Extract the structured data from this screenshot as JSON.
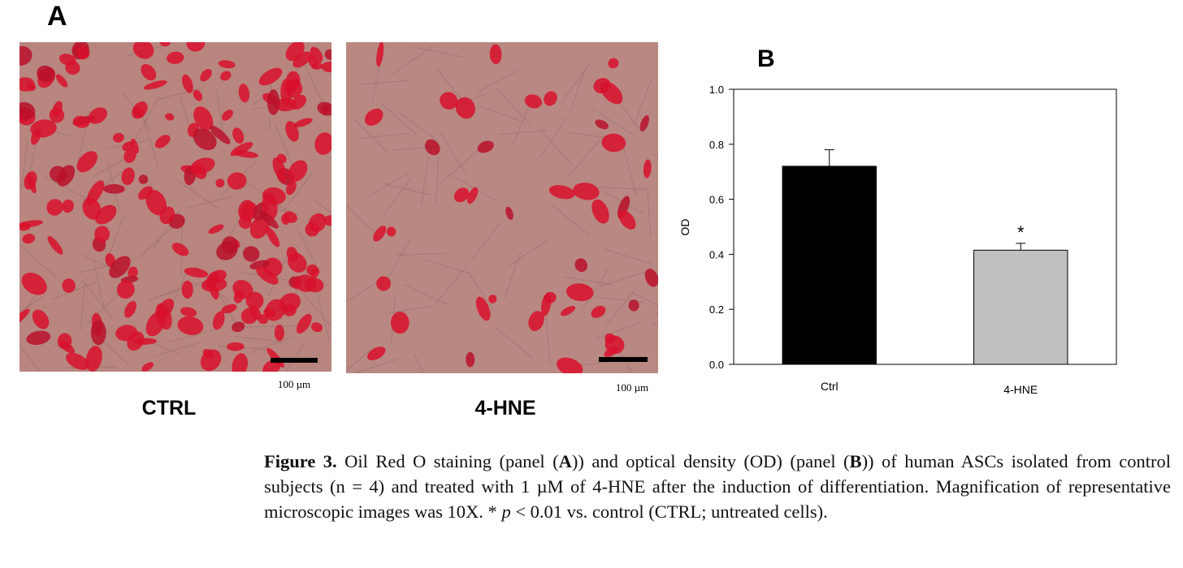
{
  "panel_a": {
    "label": "A",
    "images": [
      {
        "caption": "CTRL",
        "scale": "100 µm"
      },
      {
        "caption": "4-HNE",
        "scale": "100 µm"
      }
    ]
  },
  "chart_data": {
    "type": "bar",
    "panel_label": "B",
    "ylabel": "OD",
    "categories": [
      "Ctrl",
      "4-HNE"
    ],
    "values": [
      0.72,
      0.415
    ],
    "errors": [
      0.06,
      0.025
    ],
    "colors": [
      "#000000",
      "#c0c0c0"
    ],
    "significance": [
      null,
      "*"
    ],
    "ylim": [
      0,
      1
    ],
    "yticks": [
      {
        "value": 0,
        "label": "0.0"
      },
      0.2,
      0.4,
      0.6,
      0.8,
      {
        "value": 1,
        "label": "1.0"
      }
    ]
  },
  "caption": {
    "parts": [
      "Figure 3.",
      " Oil Red O staining (panel (",
      "A",
      ")) and optical density (OD) (panel (",
      "B",
      ")) of human ASCs isolated from control subjects (n = 4) and treated with 1 µM of 4-HNE after the induction of differentiation. Magnification of representative microscopic images was 10X. * ",
      "p",
      " < 0.01 vs. control (CTRL; untreated cells)."
    ]
  }
}
